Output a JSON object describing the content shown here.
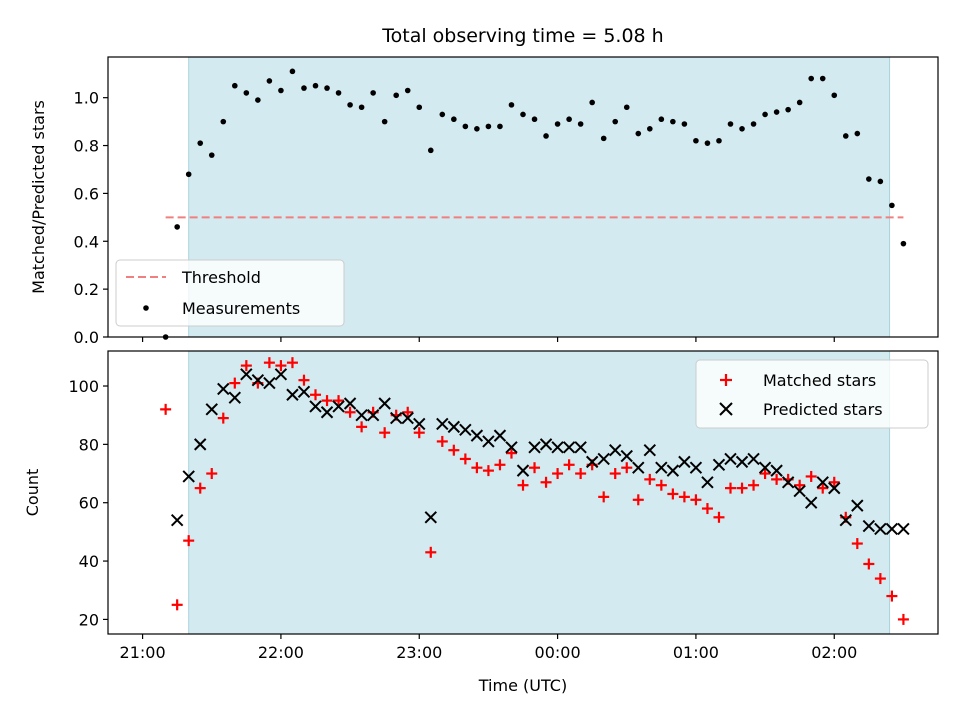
{
  "chart_data": [
    {
      "type": "scatter",
      "title": "Total observing time = 5.08 h",
      "xlabel": "",
      "ylabel": "Matched/Predicted stars",
      "ylim": [
        0,
        1.17
      ],
      "yticks": [
        "0.0",
        "0.2",
        "0.4",
        "0.6",
        "0.8",
        "1.0"
      ],
      "shaded_span": [
        "21:20",
        "02:24"
      ],
      "shade_color": "#d3eaf0",
      "threshold": {
        "name": "Threshold",
        "value": 0.5,
        "x_range": [
          "21:10",
          "02:30"
        ],
        "color": "#f08080"
      },
      "legend": {
        "placement": "lower-left",
        "entries": [
          "Threshold",
          "Measurements"
        ]
      },
      "series": [
        {
          "name": "Measurements",
          "color": "#000000",
          "x": [
            "21:10",
            "21:15",
            "21:20",
            "21:25",
            "21:30",
            "21:35",
            "21:40",
            "21:45",
            "21:50",
            "21:55",
            "22:00",
            "22:05",
            "22:10",
            "22:15",
            "22:20",
            "22:25",
            "22:30",
            "22:35",
            "22:40",
            "22:45",
            "22:50",
            "22:55",
            "23:00",
            "23:05",
            "23:10",
            "23:15",
            "23:20",
            "23:25",
            "23:30",
            "23:35",
            "23:40",
            "23:45",
            "23:50",
            "23:55",
            "00:00",
            "00:05",
            "00:10",
            "00:15",
            "00:20",
            "00:25",
            "00:30",
            "00:35",
            "00:40",
            "00:45",
            "00:50",
            "00:55",
            "01:00",
            "01:05",
            "01:10",
            "01:15",
            "01:20",
            "01:25",
            "01:30",
            "01:35",
            "01:40",
            "01:45",
            "01:50",
            "01:55",
            "02:00",
            "02:05",
            "02:10",
            "02:15",
            "02:20",
            "02:25",
            "02:30"
          ],
          "y": [
            0.0,
            0.46,
            0.68,
            0.81,
            0.76,
            0.9,
            1.05,
            1.02,
            0.99,
            1.07,
            1.03,
            1.11,
            1.04,
            1.05,
            1.04,
            1.02,
            0.97,
            0.96,
            1.02,
            0.9,
            1.01,
            1.03,
            0.96,
            0.78,
            0.93,
            0.91,
            0.88,
            0.87,
            0.88,
            0.88,
            0.97,
            0.93,
            0.91,
            0.84,
            0.89,
            0.91,
            0.89,
            0.98,
            0.83,
            0.9,
            0.96,
            0.85,
            0.87,
            0.91,
            0.9,
            0.89,
            0.82,
            0.81,
            0.82,
            0.89,
            0.87,
            0.89,
            0.93,
            0.94,
            0.95,
            0.98,
            1.08,
            1.08,
            1.01,
            0.84,
            0.85,
            0.66,
            0.65,
            0.55,
            0.39
          ]
        }
      ]
    },
    {
      "type": "scatter",
      "title": "",
      "xlabel": "Time (UTC)",
      "ylabel": "Count",
      "ylim": [
        15,
        112
      ],
      "yticks": [
        "20",
        "40",
        "60",
        "80",
        "100"
      ],
      "xticks": [
        "21:00",
        "22:00",
        "23:00",
        "00:00",
        "01:00",
        "02:00"
      ],
      "shaded_span": [
        "21:20",
        "02:24"
      ],
      "shade_color": "#d3eaf0",
      "legend": {
        "placement": "upper-right",
        "entries": [
          "Matched stars",
          "Predicted stars"
        ]
      },
      "series": [
        {
          "name": "Matched stars",
          "marker": "plus",
          "color": "#ff0000",
          "x": [
            "21:10",
            "21:15",
            "21:20",
            "21:25",
            "21:30",
            "21:35",
            "21:40",
            "21:45",
            "21:50",
            "21:55",
            "22:00",
            "22:05",
            "22:10",
            "22:15",
            "22:20",
            "22:25",
            "22:30",
            "22:35",
            "22:40",
            "22:45",
            "22:50",
            "22:55",
            "23:00",
            "23:05",
            "23:10",
            "23:15",
            "23:20",
            "23:25",
            "23:30",
            "23:35",
            "23:40",
            "23:45",
            "23:50",
            "23:55",
            "00:00",
            "00:05",
            "00:10",
            "00:15",
            "00:20",
            "00:25",
            "00:30",
            "00:35",
            "00:40",
            "00:45",
            "00:50",
            "00:55",
            "01:00",
            "01:05",
            "01:10",
            "01:15",
            "01:20",
            "01:25",
            "01:30",
            "01:35",
            "01:40",
            "01:45",
            "01:50",
            "01:55",
            "02:00",
            "02:05",
            "02:10",
            "02:15",
            "02:20",
            "02:25",
            "02:30"
          ],
          "y": [
            92,
            25,
            47,
            65,
            70,
            89,
            101,
            107,
            101,
            108,
            107,
            108,
            102,
            97,
            95,
            95,
            91,
            86,
            91,
            84,
            90,
            91,
            84,
            43,
            81,
            78,
            75,
            72,
            71,
            73,
            77,
            66,
            72,
            67,
            70,
            73,
            70,
            73,
            62,
            70,
            72,
            61,
            68,
            66,
            63,
            62,
            61,
            58,
            55,
            65,
            65,
            66,
            70,
            68,
            68,
            66,
            69,
            65,
            67,
            55,
            46,
            39,
            34,
            28,
            20
          ]
        },
        {
          "name": "Predicted stars",
          "marker": "x",
          "color": "#000000",
          "x": [
            "21:15",
            "21:20",
            "21:25",
            "21:30",
            "21:35",
            "21:40",
            "21:45",
            "21:50",
            "21:55",
            "22:00",
            "22:05",
            "22:10",
            "22:15",
            "22:20",
            "22:25",
            "22:30",
            "22:35",
            "22:40",
            "22:45",
            "22:50",
            "22:55",
            "23:00",
            "23:05",
            "23:10",
            "23:15",
            "23:20",
            "23:25",
            "23:30",
            "23:35",
            "23:40",
            "23:45",
            "23:50",
            "23:55",
            "00:00",
            "00:05",
            "00:10",
            "00:15",
            "00:20",
            "00:25",
            "00:30",
            "00:35",
            "00:40",
            "00:45",
            "00:50",
            "00:55",
            "01:00",
            "01:05",
            "01:10",
            "01:15",
            "01:20",
            "01:25",
            "01:30",
            "01:35",
            "01:40",
            "01:45",
            "01:50",
            "01:55",
            "02:00",
            "02:05",
            "02:10",
            "02:15",
            "02:20",
            "02:25",
            "02:30"
          ],
          "y": [
            54,
            69,
            80,
            92,
            99,
            96,
            104,
            102,
            101,
            104,
            97,
            98,
            93,
            91,
            93,
            94,
            90,
            90,
            94,
            89,
            89,
            87,
            55,
            87,
            86,
            85,
            83,
            81,
            83,
            79,
            71,
            79,
            80,
            79,
            79,
            79,
            74,
            75,
            78,
            76,
            72,
            78,
            72,
            71,
            74,
            72,
            67,
            73,
            75,
            74,
            75,
            72,
            71,
            67,
            64,
            60,
            67,
            65,
            54,
            59,
            52,
            51,
            51,
            51
          ]
        }
      ]
    }
  ]
}
